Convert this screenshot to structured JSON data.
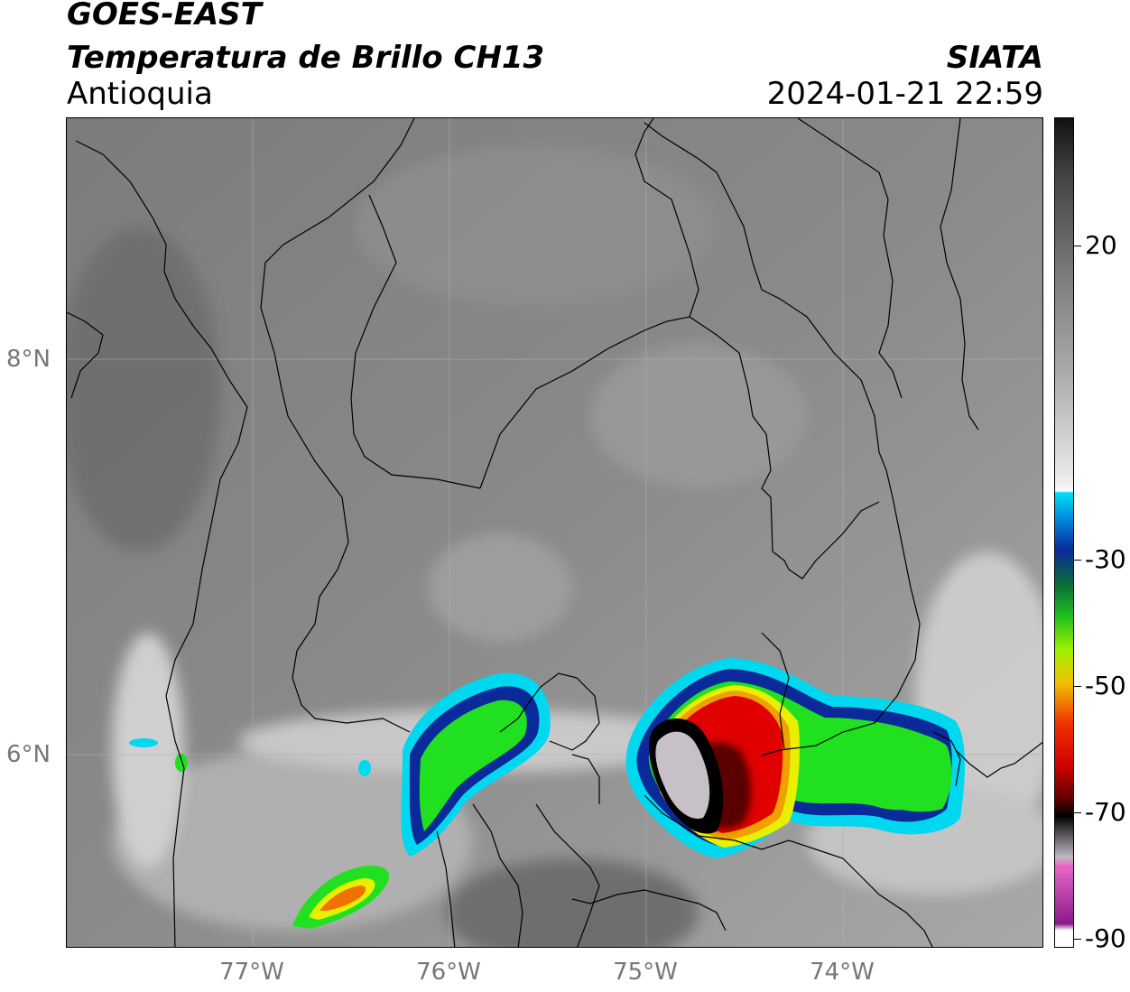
{
  "header": {
    "satellite": "GOES-EAST",
    "product": "Temperatura de Brillo CH13",
    "region": "Antioquia",
    "organization": "SIATA",
    "timestamp": "2024-01-21 22:59"
  },
  "map": {
    "lon_range": [
      -77.95,
      -73.0
    ],
    "lat_range": [
      5.05,
      9.25
    ],
    "lat_ticks": [
      {
        "value": 8,
        "label": "8°N"
      },
      {
        "value": 6,
        "label": "6°N"
      }
    ],
    "lon_ticks": [
      {
        "value": -77,
        "label": "77°W"
      },
      {
        "value": -76,
        "label": "76°W"
      },
      {
        "value": -75,
        "label": "75°W"
      },
      {
        "value": -74,
        "label": "74°W"
      }
    ],
    "gridlines": true
  },
  "colorbar": {
    "range": [
      -90,
      40
    ],
    "ticks": [
      {
        "value": 20,
        "label": "20"
      },
      {
        "value": -30,
        "label": "-30"
      },
      {
        "value": -50,
        "label": "-50"
      },
      {
        "value": -70,
        "label": "-70"
      },
      {
        "value": -90,
        "label": "-90"
      }
    ],
    "colors": {
      "warm_black": "#111111",
      "gray": "#8a8a8a",
      "white": "#f5f5f5",
      "cyan": "#00d8f0",
      "blue": "#0a2a9a",
      "green": "#20e020",
      "yellow": "#e8f000",
      "orange": "#f0a000",
      "red": "#e00000",
      "dark_red": "#5a0000",
      "black": "#000000",
      "light_gray": "#c8c0c8",
      "magenta": "#e060c0",
      "purple": "#8a1a8a"
    }
  }
}
